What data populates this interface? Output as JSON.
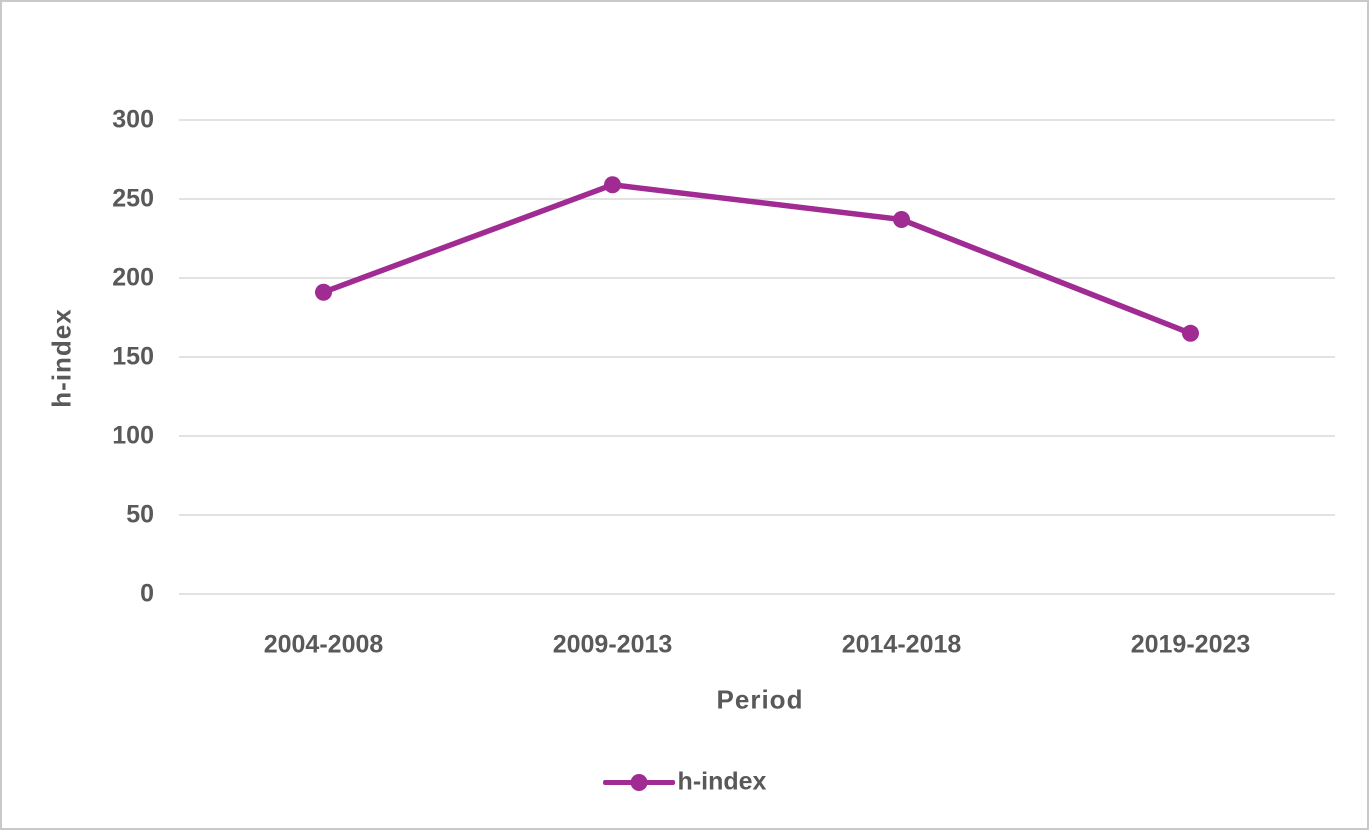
{
  "chart_data": {
    "type": "line",
    "categories": [
      "2004-2008",
      "2009-2013",
      "2014-2018",
      "2019-2023"
    ],
    "series": [
      {
        "name": "h-index",
        "values": [
          191,
          259,
          237,
          165
        ],
        "color": "#A02B93"
      }
    ],
    "xlabel": "Period",
    "ylabel": "h-index",
    "ylim": [
      0,
      300
    ],
    "yticks": [
      0,
      50,
      100,
      150,
      200,
      250,
      300
    ],
    "grid": true,
    "legend_position": "bottom",
    "legend_label": "h-index"
  },
  "colors": {
    "series_line": "#A02B93",
    "axis_text": "#595959",
    "gridline": "#D9D9D9",
    "frame_border": "#C9C9C9",
    "background": "#FFFFFF"
  }
}
